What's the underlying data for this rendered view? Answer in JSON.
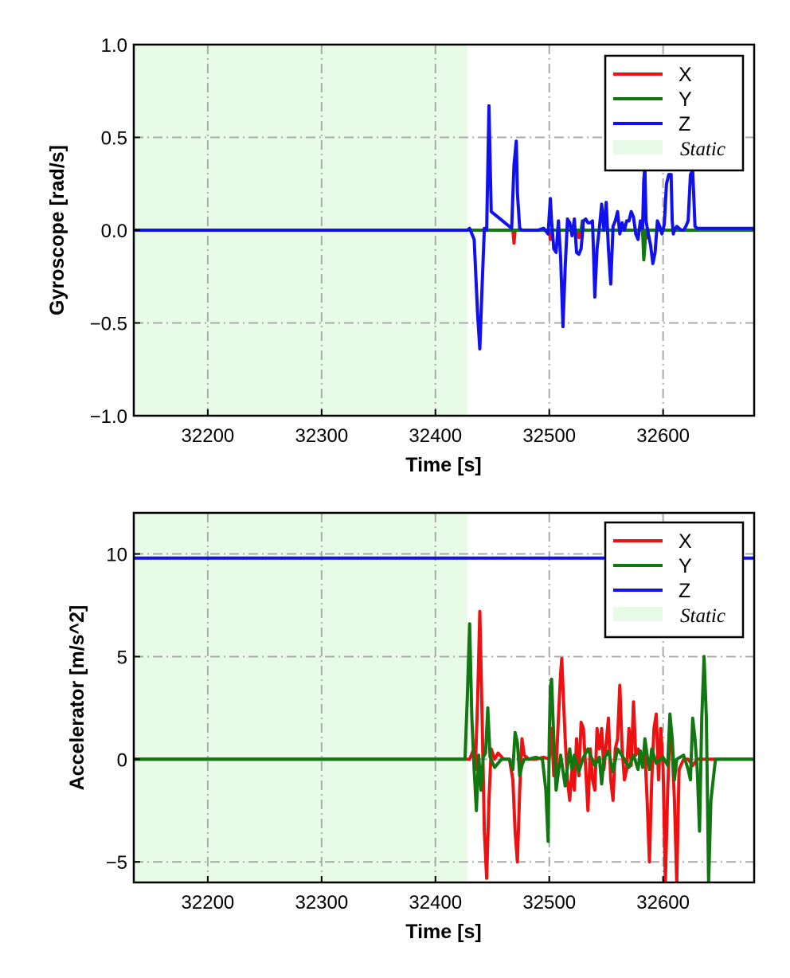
{
  "chart_data": [
    {
      "type": "line",
      "xlabel": "Time [s]",
      "ylabel": "Gyroscope [rad/s]",
      "xlim": [
        32135,
        32680
      ],
      "ylim": [
        -1.0,
        1.0
      ],
      "xticks": [
        32200,
        32300,
        32400,
        32500,
        32600
      ],
      "xtick_labels": [
        "32200",
        "32300",
        "32400",
        "32500",
        "32600"
      ],
      "yticks": [
        -1.0,
        -0.5,
        0.0,
        0.5,
        1.0
      ],
      "ytick_labels": [
        "−1.0",
        "−0.5",
        "0.0",
        "0.5",
        "1.0"
      ],
      "grid": true,
      "legend_position": "top-right",
      "static_region": {
        "label": "Static",
        "x_start": 32135,
        "x_end": 32428,
        "color": "#e8fbe6"
      },
      "series": [
        {
          "name": "X",
          "color": "#ee1111",
          "x": [
            32135,
            32468,
            32469,
            32470,
            32471,
            32500,
            32501,
            32502,
            32503,
            32525,
            32526,
            32527,
            32585,
            32586,
            32587,
            32680
          ],
          "y": [
            0.0,
            0.0,
            -0.07,
            0.0,
            0.0,
            0.0,
            -0.05,
            0.0,
            0.0,
            0.0,
            -0.04,
            0.0,
            0.0,
            -0.04,
            0.0,
            0.0
          ]
        },
        {
          "name": "Y",
          "color": "#117711",
          "x": [
            32135,
            32528,
            32529,
            32530,
            32531,
            32582,
            32583,
            32584,
            32585,
            32680
          ],
          "y": [
            0.0,
            0.0,
            0.05,
            0.0,
            0.0,
            0.0,
            -0.16,
            -0.08,
            0.0,
            0.0
          ]
        },
        {
          "name": "Z",
          "color": "#1111ee",
          "x": [
            32135,
            32428,
            32430,
            32434,
            32437,
            32439,
            32441,
            32443,
            32445,
            32447,
            32449,
            32467,
            32469,
            32471,
            32472,
            32474,
            32476,
            32490,
            32495,
            32499,
            32500,
            32501,
            32502,
            32504,
            32506,
            32508,
            32510,
            32512,
            32514,
            32516,
            32518,
            32520,
            32522,
            32524,
            32526,
            32528,
            32530,
            32532,
            32534,
            32536,
            32538,
            32539,
            32540,
            32542,
            32544,
            32546,
            32548,
            32550,
            32552,
            32554,
            32556,
            32558,
            32560,
            32562,
            32564,
            32566,
            32568,
            32570,
            32572,
            32574,
            32576,
            32578,
            32580,
            32582,
            32583,
            32584,
            32585,
            32587,
            32589,
            32591,
            32593,
            32595,
            32597,
            32599,
            32601,
            32603,
            32605,
            32607,
            32608,
            32609,
            32610,
            32612,
            32614,
            32616,
            32618,
            32620,
            32622,
            32624,
            32626,
            32627,
            32628,
            32630,
            32632,
            32636,
            32680
          ],
          "y": [
            0.0,
            0.0,
            0.01,
            -0.05,
            -0.45,
            -0.64,
            -0.3,
            0.01,
            0.0,
            0.67,
            0.1,
            0.01,
            0.35,
            0.48,
            0.2,
            0.01,
            0.0,
            0.0,
            0.01,
            -0.02,
            0.08,
            0.17,
            0.05,
            -0.1,
            -0.12,
            0.05,
            -0.15,
            -0.52,
            -0.2,
            0.06,
            0.04,
            -0.03,
            0.06,
            -0.12,
            -0.13,
            -0.1,
            0.05,
            0.06,
            0.04,
            0.04,
            0.05,
            -0.15,
            -0.36,
            -0.1,
            0.01,
            0.14,
            0.0,
            0.15,
            -0.1,
            -0.29,
            0.02,
            0.05,
            0.1,
            -0.02,
            0.04,
            0.0,
            0.05,
            0.05,
            0.1,
            0.07,
            -0.02,
            -0.05,
            0.05,
            0.01,
            0.27,
            0.34,
            0.05,
            -0.02,
            -0.08,
            -0.18,
            -0.12,
            0.05,
            0.02,
            -0.02,
            0.03,
            0.25,
            0.3,
            0.3,
            0.05,
            -0.02,
            0.0,
            0.02,
            0.01,
            0.0,
            0.0,
            0.02,
            0.05,
            0.3,
            0.32,
            0.18,
            0.02,
            0.01,
            0.01,
            0.01,
            0.01
          ]
        }
      ]
    },
    {
      "type": "line",
      "xlabel": "Time [s]",
      "ylabel": "Accelerator [m/s^2]",
      "xlim": [
        32135,
        32680
      ],
      "ylim": [
        -6.0,
        12.0
      ],
      "xticks": [
        32200,
        32300,
        32400,
        32500,
        32600
      ],
      "xtick_labels": [
        "32200",
        "32300",
        "32400",
        "32500",
        "32600"
      ],
      "yticks": [
        -5,
        0,
        5,
        10
      ],
      "ytick_labels": [
        "−5",
        "0",
        "5",
        "10"
      ],
      "grid": true,
      "legend_position": "top-right",
      "static_region": {
        "label": "Static",
        "x_start": 32135,
        "x_end": 32428,
        "color": "#e8fbe6"
      },
      "series": [
        {
          "name": "X",
          "color": "#ee1111",
          "x": [
            32135,
            32430,
            32433,
            32435,
            32437,
            32439,
            32441,
            32443,
            32445,
            32447,
            32449,
            32452,
            32455,
            32460,
            32465,
            32468,
            32470,
            32472,
            32474,
            32476,
            32478,
            32482,
            32488,
            32495,
            32500,
            32502,
            32504,
            32506,
            32508,
            32510,
            32511,
            32512,
            32514,
            32516,
            32518,
            32520,
            32522,
            32524,
            32526,
            32528,
            32530,
            32532,
            32534,
            32536,
            32538,
            32540,
            32542,
            32544,
            32546,
            32548,
            32550,
            32552,
            32554,
            32556,
            32558,
            32560,
            32562,
            32564,
            32566,
            32568,
            32570,
            32572,
            32574,
            32576,
            32578,
            32580,
            32582,
            32584,
            32586,
            32588,
            32590,
            32592,
            32594,
            32596,
            32598,
            32600,
            32602,
            32604,
            32606,
            32608,
            32610,
            32612,
            32614,
            32618,
            32622,
            32626,
            32630,
            32680
          ],
          "y": [
            0.0,
            0.0,
            0.4,
            -0.5,
            2.8,
            7.2,
            2.0,
            -3.5,
            -5.8,
            -2.0,
            0.5,
            0.0,
            0.3,
            0.0,
            0.0,
            -1.0,
            -3.5,
            -5.0,
            -1.5,
            1.0,
            0.2,
            0.0,
            0.0,
            0.1,
            0.0,
            1.5,
            -0.8,
            -0.5,
            2.0,
            4.2,
            4.9,
            3.5,
            1.0,
            -1.0,
            -2.0,
            -0.5,
            -1.5,
            1.0,
            -0.8,
            1.8,
            1.5,
            -0.5,
            -2.5,
            0.5,
            -1.0,
            -1.5,
            1.5,
            0.5,
            1.5,
            -0.5,
            0.8,
            2.0,
            -1.0,
            -2.0,
            0.5,
            1.0,
            3.6,
            0.5,
            -1.0,
            -0.5,
            1.5,
            -0.3,
            2.8,
            0.2,
            0.5,
            0.0,
            -0.3,
            0.4,
            -2.0,
            -5.0,
            -1.0,
            1.5,
            2.2,
            -1.0,
            1.5,
            -0.5,
            -6.0,
            -1.5,
            1.3,
            0.5,
            -2.0,
            -6.0,
            -0.5,
            0.0,
            0.0,
            -0.3,
            0.0,
            0.0
          ]
        },
        {
          "name": "Y",
          "color": "#117711",
          "x": [
            32135,
            32426,
            32428,
            32430,
            32432,
            32434,
            32436,
            32438,
            32440,
            32442,
            32444,
            32446,
            32448,
            32452,
            32458,
            32465,
            32468,
            32470,
            32472,
            32474,
            32476,
            32478,
            32482,
            32488,
            32494,
            32497,
            32499,
            32500,
            32501,
            32502,
            32504,
            32506,
            32510,
            32514,
            32518,
            32520,
            32522,
            32526,
            32530,
            32534,
            32540,
            32544,
            32546,
            32548,
            32552,
            32556,
            32560,
            32566,
            32570,
            32574,
            32578,
            32580,
            32582,
            32584,
            32586,
            32588,
            32590,
            32594,
            32600,
            32604,
            32606,
            32608,
            32610,
            32612,
            32618,
            32622,
            32624,
            32626,
            32628,
            32630,
            32632,
            32634,
            32636,
            32638,
            32640,
            32642,
            32646,
            32680
          ],
          "y": [
            0.0,
            0.0,
            3.0,
            6.6,
            2.0,
            -0.5,
            -2.5,
            0.2,
            -1.5,
            0.1,
            0.3,
            2.5,
            0.1,
            -0.4,
            0.0,
            0.0,
            -0.5,
            1.3,
            0.8,
            -0.8,
            -0.3,
            0.0,
            0.0,
            0.1,
            0.0,
            -1.5,
            -4.0,
            1.0,
            3.5,
            3.9,
            1.0,
            -1.5,
            0.2,
            -1.3,
            0.5,
            -0.5,
            0.2,
            -0.6,
            0.1,
            0.5,
            -0.3,
            0.1,
            -1.2,
            0.0,
            0.4,
            -0.6,
            0.5,
            0.0,
            -0.4,
            0.2,
            -0.5,
            0.4,
            -0.4,
            1.0,
            0.2,
            -0.5,
            0.5,
            -0.2,
            0.1,
            -0.3,
            2.2,
            1.0,
            -1.0,
            0.0,
            0.2,
            -0.5,
            -1.0,
            2.0,
            1.0,
            -0.5,
            -3.5,
            2.0,
            5.0,
            2.0,
            -6.0,
            -2.0,
            0.0,
            0.0
          ]
        },
        {
          "name": "Z",
          "color": "#1111ee",
          "x": [
            32135,
            32680
          ],
          "y": [
            9.8,
            9.8
          ]
        }
      ]
    }
  ]
}
